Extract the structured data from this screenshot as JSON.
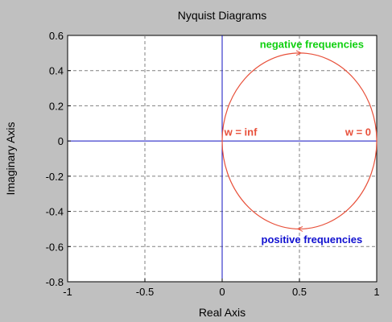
{
  "chart_data": {
    "type": "line",
    "title": "Nyquist Diagrams",
    "xlabel": "Real Axis",
    "ylabel": "Imaginary Axis",
    "xlim": [
      -1,
      1
    ],
    "ylim": [
      -0.8,
      0.6
    ],
    "xticks": [
      -1,
      -0.5,
      0,
      0.5,
      1
    ],
    "xtick_labels": [
      "-1",
      "-0.5",
      "0",
      "0.5",
      "1"
    ],
    "yticks": [
      0.6,
      0.4,
      0.2,
      0,
      -0.2,
      -0.4,
      -0.6,
      -0.8
    ],
    "ytick_labels": [
      "0.6",
      "0.4",
      "0.2",
      "0",
      "-0.2",
      "-0.4",
      "-0.6",
      "-0.8"
    ],
    "grid": true,
    "series": [
      {
        "color": "#e8503a",
        "shape": "circle",
        "center": [
          0.5,
          0
        ],
        "radius": 0.5
      }
    ],
    "annotations": [
      {
        "text": "negative  frequencies",
        "x": 0.58,
        "y": 0.53,
        "color": "#10d010"
      },
      {
        "text": "w = inf",
        "x": 0.12,
        "y": 0.03,
        "color": "#e8503a"
      },
      {
        "text": "w = 0",
        "x": 0.88,
        "y": 0.03,
        "color": "#e8503a"
      },
      {
        "text": "positive frequencies",
        "x": 0.58,
        "y": -0.58,
        "color": "#1010d0"
      }
    ],
    "colors": {
      "axes_background": "#ffffff",
      "figure_background": "#c0c0c0",
      "axis_lines": "#1010c0",
      "grid": "#808080"
    }
  }
}
